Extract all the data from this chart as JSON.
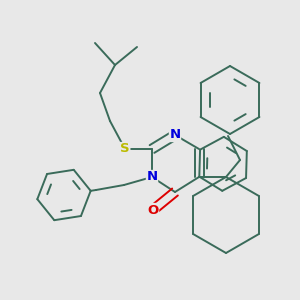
{
  "background_color": "#e8e8e8",
  "bond_color": "#3a6b5a",
  "atom_colors": {
    "N": "#0000dd",
    "O": "#dd0000",
    "S": "#bbbb00"
  },
  "line_width": 1.4,
  "font_size": 9.5
}
